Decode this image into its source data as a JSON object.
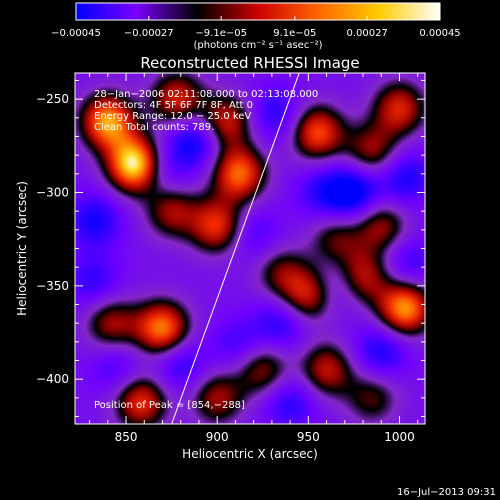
{
  "chart_data": {
    "type": "heatmap",
    "title": "Reconstructed RHESSI Image",
    "xlabel": "Heliocentric X (arcsec)",
    "ylabel": "Heliocentric Y (arcsec)",
    "xlim": [
      822,
      1014
    ],
    "ylim": [
      -424,
      -236
    ],
    "x_ticks": [
      850,
      900,
      950,
      1000
    ],
    "x_tick_labels": [
      "850",
      "900",
      "950",
      "1000"
    ],
    "y_ticks": [
      -250,
      -300,
      -350,
      -400
    ],
    "y_tick_labels": [
      "−250",
      "−300",
      "−350",
      "−400"
    ],
    "colorbar": {
      "range": [
        -0.00045,
        0.00045
      ],
      "tick_values": [
        -0.00045,
        -0.00027,
        -9.1e-05,
        9.1e-05,
        0.00027,
        0.00045
      ],
      "tick_labels": [
        "−0.00045",
        "−0.00027",
        "−9.1e−05",
        "9.1e−05",
        "0.00027",
        "0.00045"
      ],
      "unit_text": "(photons cm⁻² s⁻¹ asec⁻²)",
      "colors": [
        "#0000ff",
        "#7a00ff",
        "#000000",
        "#cc0000",
        "#ff6600",
        "#ffcc00",
        "#ffffff"
      ]
    },
    "annotations": [
      "28−Jan−2006 02:11:08.000 to 02:13:08.000",
      "Detectors: 4F 5F 6F 7F 8F, Att 0",
      "Energy Range: 12.0 − 25.0 keV",
      "Clean     Total counts: 789."
    ],
    "peak_label": "Position of Peak = [854,−288]",
    "peak": [
      854,
      -288
    ],
    "bright_sources": [
      {
        "x": 855,
        "y": -285,
        "amp": 1.0
      },
      {
        "x": 840,
        "y": -262,
        "amp": 0.8
      },
      {
        "x": 878,
        "y": -250,
        "amp": 0.55
      },
      {
        "x": 905,
        "y": -262,
        "amp": 0.55
      },
      {
        "x": 912,
        "y": -290,
        "amp": 0.7
      },
      {
        "x": 955,
        "y": -268,
        "amp": 0.65
      },
      {
        "x": 1000,
        "y": -255,
        "amp": 0.55
      },
      {
        "x": 985,
        "y": -278,
        "amp": 0.45
      },
      {
        "x": 900,
        "y": -318,
        "amp": 0.6
      },
      {
        "x": 875,
        "y": -310,
        "amp": 0.45
      },
      {
        "x": 990,
        "y": -318,
        "amp": 0.45
      },
      {
        "x": 965,
        "y": -325,
        "amp": 0.35
      },
      {
        "x": 950,
        "y": -355,
        "amp": 0.55
      },
      {
        "x": 980,
        "y": -345,
        "amp": 0.5
      },
      {
        "x": 1003,
        "y": -362,
        "amp": 0.8
      },
      {
        "x": 870,
        "y": -373,
        "amp": 0.75
      },
      {
        "x": 842,
        "y": -370,
        "amp": 0.45
      },
      {
        "x": 960,
        "y": -395,
        "amp": 0.5
      },
      {
        "x": 925,
        "y": -395,
        "amp": 0.45
      },
      {
        "x": 858,
        "y": -412,
        "amp": 0.6
      },
      {
        "x": 900,
        "y": -410,
        "amp": 0.45
      },
      {
        "x": 985,
        "y": -410,
        "amp": 0.35
      },
      {
        "x": 935,
        "y": -343,
        "amp": 0.35
      }
    ],
    "dark_sources": [
      {
        "x": 888,
        "y": -272,
        "amp": 0.55
      },
      {
        "x": 932,
        "y": -258,
        "amp": 0.4
      },
      {
        "x": 975,
        "y": -300,
        "amp": 0.65
      },
      {
        "x": 1003,
        "y": -292,
        "amp": 0.45
      },
      {
        "x": 870,
        "y": -288,
        "amp": 0.35
      },
      {
        "x": 833,
        "y": -315,
        "amp": 0.45
      },
      {
        "x": 920,
        "y": -322,
        "amp": 0.3
      },
      {
        "x": 965,
        "y": -350,
        "amp": 0.3
      },
      {
        "x": 935,
        "y": -370,
        "amp": 0.4
      },
      {
        "x": 990,
        "y": -385,
        "amp": 0.45
      },
      {
        "x": 880,
        "y": -392,
        "amp": 0.4
      },
      {
        "x": 845,
        "y": -395,
        "amp": 0.3
      },
      {
        "x": 940,
        "y": -412,
        "amp": 0.4
      },
      {
        "x": 1005,
        "y": -338,
        "amp": 0.35
      },
      {
        "x": 832,
        "y": -348,
        "amp": 0.35
      },
      {
        "x": 912,
        "y": -382,
        "amp": 0.3
      },
      {
        "x": 958,
        "y": -300,
        "amp": 0.35
      }
    ],
    "limb_line": [
      [
        875,
        -424
      ],
      [
        945,
        -236
      ]
    ]
  },
  "footer": {
    "timestamp": "16−Jul−2013 09:31"
  }
}
